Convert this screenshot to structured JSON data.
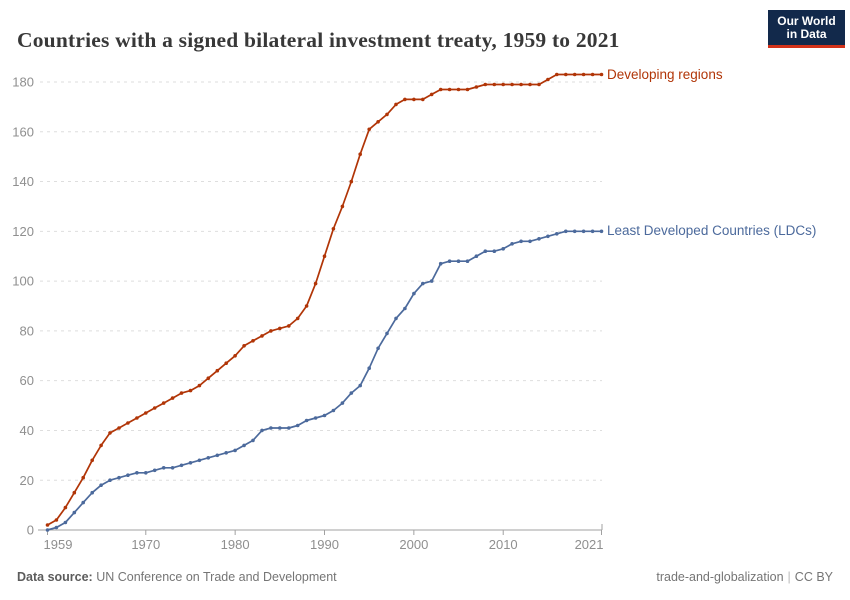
{
  "header": {
    "title": "Countries with a signed bilateral investment treaty, 1959 to 2021",
    "logo": {
      "line1": "Our World",
      "line2": "in Data",
      "bg_color": "#12294b",
      "bar_color": "#d3321a"
    }
  },
  "chart_data": {
    "type": "line",
    "title": "Countries with a signed bilateral investment treaty, 1959 to 2021",
    "xlabel": "",
    "ylabel": "",
    "ylim": [
      0,
      180
    ],
    "grid": "horizontal-dashed",
    "legend_position": "right-of-line-end",
    "yticks": [
      0,
      20,
      40,
      60,
      80,
      100,
      120,
      140,
      160,
      180
    ],
    "xticks": [
      1959,
      1970,
      1980,
      1990,
      2000,
      2010,
      2021
    ],
    "years": [
      1959,
      1960,
      1961,
      1962,
      1963,
      1964,
      1965,
      1966,
      1967,
      1968,
      1969,
      1970,
      1971,
      1972,
      1973,
      1974,
      1975,
      1976,
      1977,
      1978,
      1979,
      1980,
      1981,
      1982,
      1983,
      1984,
      1985,
      1986,
      1987,
      1988,
      1989,
      1990,
      1991,
      1992,
      1993,
      1994,
      1995,
      1996,
      1997,
      1998,
      1999,
      2000,
      2001,
      2002,
      2003,
      2004,
      2005,
      2006,
      2007,
      2008,
      2009,
      2010,
      2011,
      2012,
      2013,
      2014,
      2015,
      2016,
      2017,
      2018,
      2019,
      2020,
      2021
    ],
    "series": [
      {
        "name": "Developing regions",
        "color": "#b13507",
        "values": [
          2,
          4,
          9,
          15,
          21,
          28,
          34,
          39,
          41,
          43,
          45,
          47,
          49,
          51,
          53,
          55,
          56,
          58,
          61,
          64,
          67,
          70,
          74,
          76,
          78,
          80,
          81,
          82,
          85,
          90,
          99,
          110,
          121,
          130,
          140,
          151,
          161,
          164,
          167,
          171,
          173,
          173,
          173,
          175,
          177,
          177,
          177,
          177,
          178,
          179,
          179,
          179,
          179,
          179,
          179,
          179,
          181,
          183,
          183,
          183,
          183,
          183,
          183
        ]
      },
      {
        "name": "Least Developed Countries (LDCs)",
        "color": "#4c6a9c",
        "values": [
          0,
          1,
          3,
          7,
          11,
          15,
          18,
          20,
          21,
          22,
          23,
          23,
          24,
          25,
          25,
          26,
          27,
          28,
          29,
          30,
          31,
          32,
          34,
          36,
          40,
          41,
          41,
          41,
          42,
          44,
          45,
          46,
          48,
          51,
          55,
          58,
          65,
          73,
          79,
          85,
          89,
          95,
          99,
          100,
          107,
          108,
          108,
          108,
          110,
          112,
          112,
          113,
          115,
          116,
          116,
          117,
          118,
          119,
          120,
          120,
          120,
          120,
          120
        ]
      }
    ],
    "axis_color": "#a1a1a1",
    "gridline_color": "#dedede",
    "tick_label_color": "#8f8f8f"
  },
  "footer": {
    "source_label": "Data source:",
    "source": "UN Conference on Trade and Development",
    "slug": "trade-and-globalization",
    "separator": "|",
    "license": "CC BY"
  }
}
